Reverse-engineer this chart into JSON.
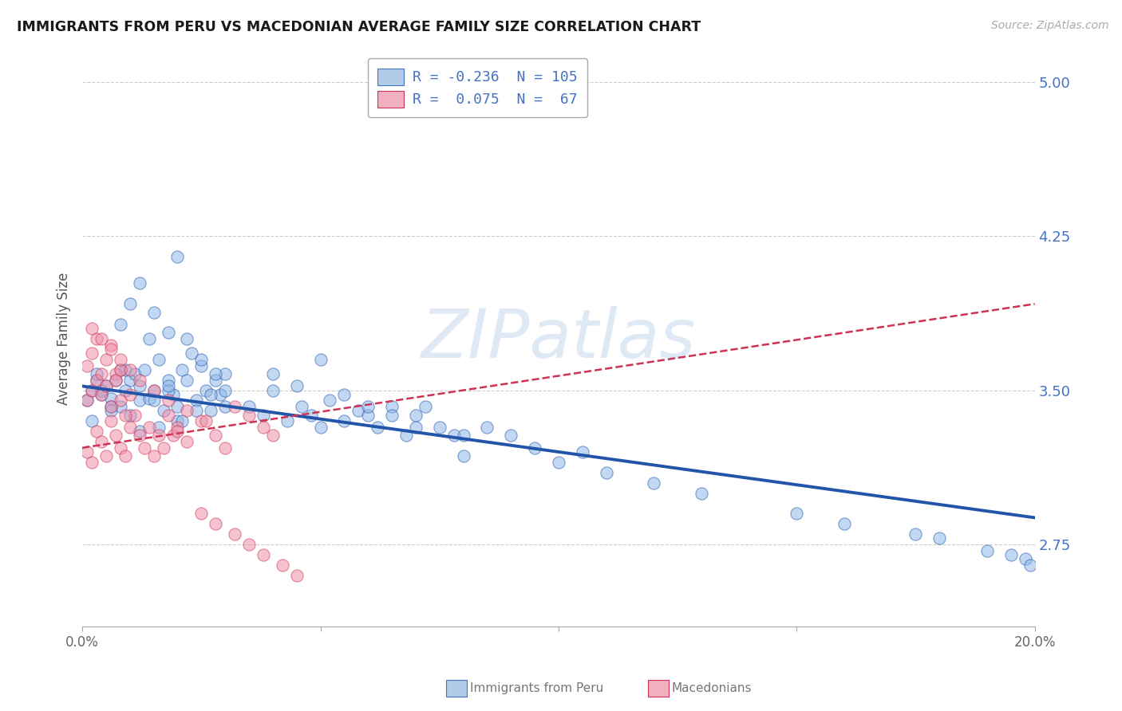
{
  "title": "IMMIGRANTS FROM PERU VS MACEDONIAN AVERAGE FAMILY SIZE CORRELATION CHART",
  "source": "Source: ZipAtlas.com",
  "ylabel": "Average Family Size",
  "yticks": [
    2.75,
    3.5,
    4.25,
    5.0
  ],
  "xlim": [
    0.0,
    0.2
  ],
  "ylim": [
    2.35,
    5.15
  ],
  "tick_color": "#4472c4",
  "background_color": "#ffffff",
  "grid_color": "#cccccc",
  "series": [
    {
      "label": "Immigrants from Peru",
      "R": -0.236,
      "N": 105,
      "scatter_color": "#90b8e8",
      "line_color": "#2255aa",
      "trend_style": "solid",
      "trend_intercept": 3.52,
      "trend_slope": -3.2,
      "points_x": [
        0.001,
        0.002,
        0.003,
        0.004,
        0.005,
        0.006,
        0.007,
        0.008,
        0.009,
        0.01,
        0.011,
        0.012,
        0.013,
        0.014,
        0.015,
        0.016,
        0.017,
        0.018,
        0.019,
        0.02,
        0.021,
        0.022,
        0.023,
        0.024,
        0.025,
        0.026,
        0.027,
        0.028,
        0.029,
        0.03,
        0.002,
        0.004,
        0.006,
        0.008,
        0.01,
        0.012,
        0.014,
        0.016,
        0.018,
        0.02,
        0.003,
        0.006,
        0.009,
        0.012,
        0.015,
        0.018,
        0.021,
        0.024,
        0.027,
        0.03,
        0.035,
        0.038,
        0.04,
        0.043,
        0.046,
        0.048,
        0.05,
        0.052,
        0.055,
        0.058,
        0.06,
        0.062,
        0.065,
        0.068,
        0.07,
        0.072,
        0.075,
        0.078,
        0.08,
        0.085,
        0.09,
        0.095,
        0.1,
        0.105,
        0.11,
        0.12,
        0.13,
        0.008,
        0.01,
        0.012,
        0.015,
        0.018,
        0.02,
        0.022,
        0.025,
        0.028,
        0.03,
        0.04,
        0.045,
        0.05,
        0.055,
        0.06,
        0.065,
        0.07,
        0.08,
        0.15,
        0.16,
        0.175,
        0.18,
        0.19,
        0.195,
        0.198,
        0.199
      ],
      "points_y": [
        3.45,
        3.5,
        3.55,
        3.48,
        3.52,
        3.46,
        3.55,
        3.42,
        3.6,
        3.55,
        3.58,
        3.45,
        3.6,
        3.75,
        3.5,
        3.65,
        3.4,
        3.55,
        3.48,
        3.35,
        3.6,
        3.55,
        3.68,
        3.45,
        3.62,
        3.5,
        3.4,
        3.55,
        3.48,
        3.58,
        3.35,
        3.5,
        3.42,
        3.6,
        3.38,
        3.52,
        3.46,
        3.32,
        3.5,
        3.42,
        3.58,
        3.4,
        3.5,
        3.3,
        3.45,
        3.52,
        3.35,
        3.4,
        3.48,
        3.42,
        3.42,
        3.38,
        3.5,
        3.35,
        3.42,
        3.38,
        3.32,
        3.45,
        3.35,
        3.4,
        3.38,
        3.32,
        3.42,
        3.28,
        3.38,
        3.42,
        3.32,
        3.28,
        3.18,
        3.32,
        3.28,
        3.22,
        3.15,
        3.2,
        3.1,
        3.05,
        3.0,
        3.82,
        3.92,
        4.02,
        3.88,
        3.78,
        4.15,
        3.75,
        3.65,
        3.58,
        3.5,
        3.58,
        3.52,
        3.65,
        3.48,
        3.42,
        3.38,
        3.32,
        3.28,
        2.9,
        2.85,
        2.8,
        2.78,
        2.72,
        2.7,
        2.68,
        2.65
      ]
    },
    {
      "label": "Macedonians",
      "R": 0.075,
      "N": 67,
      "scatter_color": "#f090a8",
      "line_color": "#cc3355",
      "trend_style": "dashed",
      "trend_intercept": 3.22,
      "trend_slope": 3.5,
      "points_x": [
        0.001,
        0.002,
        0.003,
        0.004,
        0.005,
        0.006,
        0.007,
        0.008,
        0.009,
        0.01,
        0.011,
        0.012,
        0.013,
        0.014,
        0.015,
        0.016,
        0.017,
        0.018,
        0.019,
        0.02,
        0.001,
        0.002,
        0.003,
        0.004,
        0.005,
        0.006,
        0.007,
        0.008,
        0.009,
        0.01,
        0.001,
        0.002,
        0.003,
        0.004,
        0.005,
        0.006,
        0.007,
        0.008,
        0.02,
        0.022,
        0.025,
        0.028,
        0.03,
        0.032,
        0.035,
        0.038,
        0.04,
        0.002,
        0.004,
        0.006,
        0.008,
        0.01,
        0.012,
        0.015,
        0.018,
        0.022,
        0.026,
        0.025,
        0.028,
        0.032,
        0.035,
        0.038,
        0.042,
        0.045
      ],
      "points_y": [
        3.2,
        3.15,
        3.3,
        3.25,
        3.18,
        3.35,
        3.28,
        3.22,
        3.18,
        3.32,
        3.38,
        3.28,
        3.22,
        3.32,
        3.18,
        3.28,
        3.22,
        3.38,
        3.28,
        3.32,
        3.45,
        3.5,
        3.55,
        3.48,
        3.52,
        3.42,
        3.58,
        3.45,
        3.38,
        3.48,
        3.62,
        3.68,
        3.75,
        3.58,
        3.65,
        3.72,
        3.55,
        3.6,
        3.3,
        3.25,
        3.35,
        3.28,
        3.22,
        3.42,
        3.38,
        3.32,
        3.28,
        3.8,
        3.75,
        3.7,
        3.65,
        3.6,
        3.55,
        3.5,
        3.45,
        3.4,
        3.35,
        2.9,
        2.85,
        2.8,
        2.75,
        2.7,
        2.65,
        2.6
      ]
    }
  ],
  "watermark": "ZIPatlas",
  "watermark_color": "#c5d8ee",
  "legend_items": [
    {
      "color": "#b0cce8",
      "border": "#4472c4",
      "R": -0.236,
      "N": 105
    },
    {
      "color": "#f0b0c0",
      "border": "#cc3355",
      "R": 0.075,
      "N": 67
    }
  ],
  "xlabel_items": [
    {
      "label": "Immigrants from Peru",
      "color": "#b0cce8",
      "border": "#4472c4"
    },
    {
      "label": "Macedonians",
      "color": "#f0b0c0",
      "border": "#cc3355"
    }
  ]
}
